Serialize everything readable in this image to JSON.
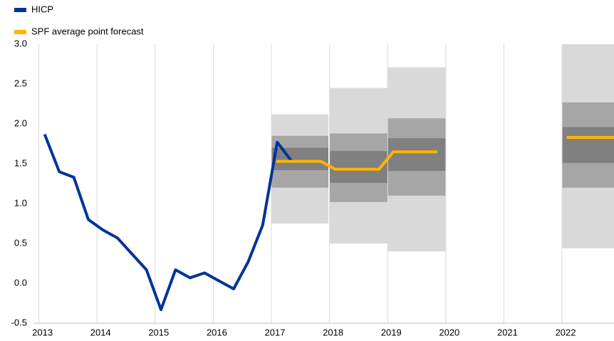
{
  "chart_data": {
    "type": "line",
    "xlim": [
      2012.907,
      2022.894
    ],
    "ylim": [
      -0.5,
      3.0
    ],
    "xticks": [
      2013,
      2014,
      2015,
      2016,
      2017,
      2018,
      2019,
      2020,
      2021,
      2022
    ],
    "yticks": [
      {
        "value": -0.5,
        "label": "-0.5"
      },
      {
        "value": 0,
        "label": "0.0"
      },
      {
        "value": 0.5,
        "label": "0.5"
      },
      {
        "value": 1,
        "label": "1.0"
      },
      {
        "value": 1.5,
        "label": "1.5"
      },
      {
        "value": 2,
        "label": "2.0"
      },
      {
        "value": 2.5,
        "label": "2.5"
      },
      {
        "value": 3,
        "label": "3.0"
      }
    ],
    "grid": true,
    "series": [
      {
        "name": "HICP",
        "color": "#003399",
        "x": [
          2013.1,
          2013.35,
          2013.6,
          2013.85,
          2014.1,
          2014.35,
          2014.6,
          2014.85,
          2015.1,
          2015.35,
          2015.6,
          2015.85,
          2016.1,
          2016.35,
          2016.6,
          2016.85,
          2017.1,
          2017.35
        ],
        "values": [
          1.87,
          1.4,
          1.33,
          0.8,
          0.67,
          0.57,
          0.37,
          0.17,
          -0.33,
          0.17,
          0.07,
          0.13,
          0.03,
          -0.07,
          0.27,
          0.73,
          1.77,
          1.53
        ]
      },
      {
        "name": "SPF average point forecast",
        "color": "#ffb400",
        "x": [
          2017.08,
          2017.85,
          2018.1,
          2018.85,
          2019.1,
          2019.85,
          2020.5,
          2022.08,
          2022.894
        ],
        "values": [
          1.53,
          1.53,
          1.43,
          1.43,
          1.65,
          1.65,
          null,
          1.83,
          1.83
        ]
      }
    ],
    "fan": [
      {
        "x": [
          2017,
          2017.98
        ],
        "outer": [
          0.75,
          2.12
        ],
        "middle": [
          1.2,
          1.85
        ],
        "inner": [
          1.42,
          1.7
        ]
      },
      {
        "x": [
          2018,
          2019
        ],
        "outer": [
          0.5,
          2.45
        ],
        "middle": [
          1.02,
          1.88
        ],
        "inner": [
          1.26,
          1.66
        ]
      },
      {
        "x": [
          2019,
          2020
        ],
        "outer": [
          0.4,
          2.71
        ],
        "middle": [
          1.1,
          2.07
        ],
        "inner": [
          1.41,
          1.82
        ]
      },
      {
        "x": [
          2022,
          2022.894
        ],
        "outer": [
          0.44,
          3.0
        ],
        "middle": [
          1.2,
          2.27
        ],
        "inner": [
          1.51,
          1.96
        ]
      }
    ],
    "fan_colors": {
      "outer": "#d9d9d9",
      "middle": "#a6a6a6",
      "inner": "#808080"
    },
    "legend": "top-left"
  }
}
